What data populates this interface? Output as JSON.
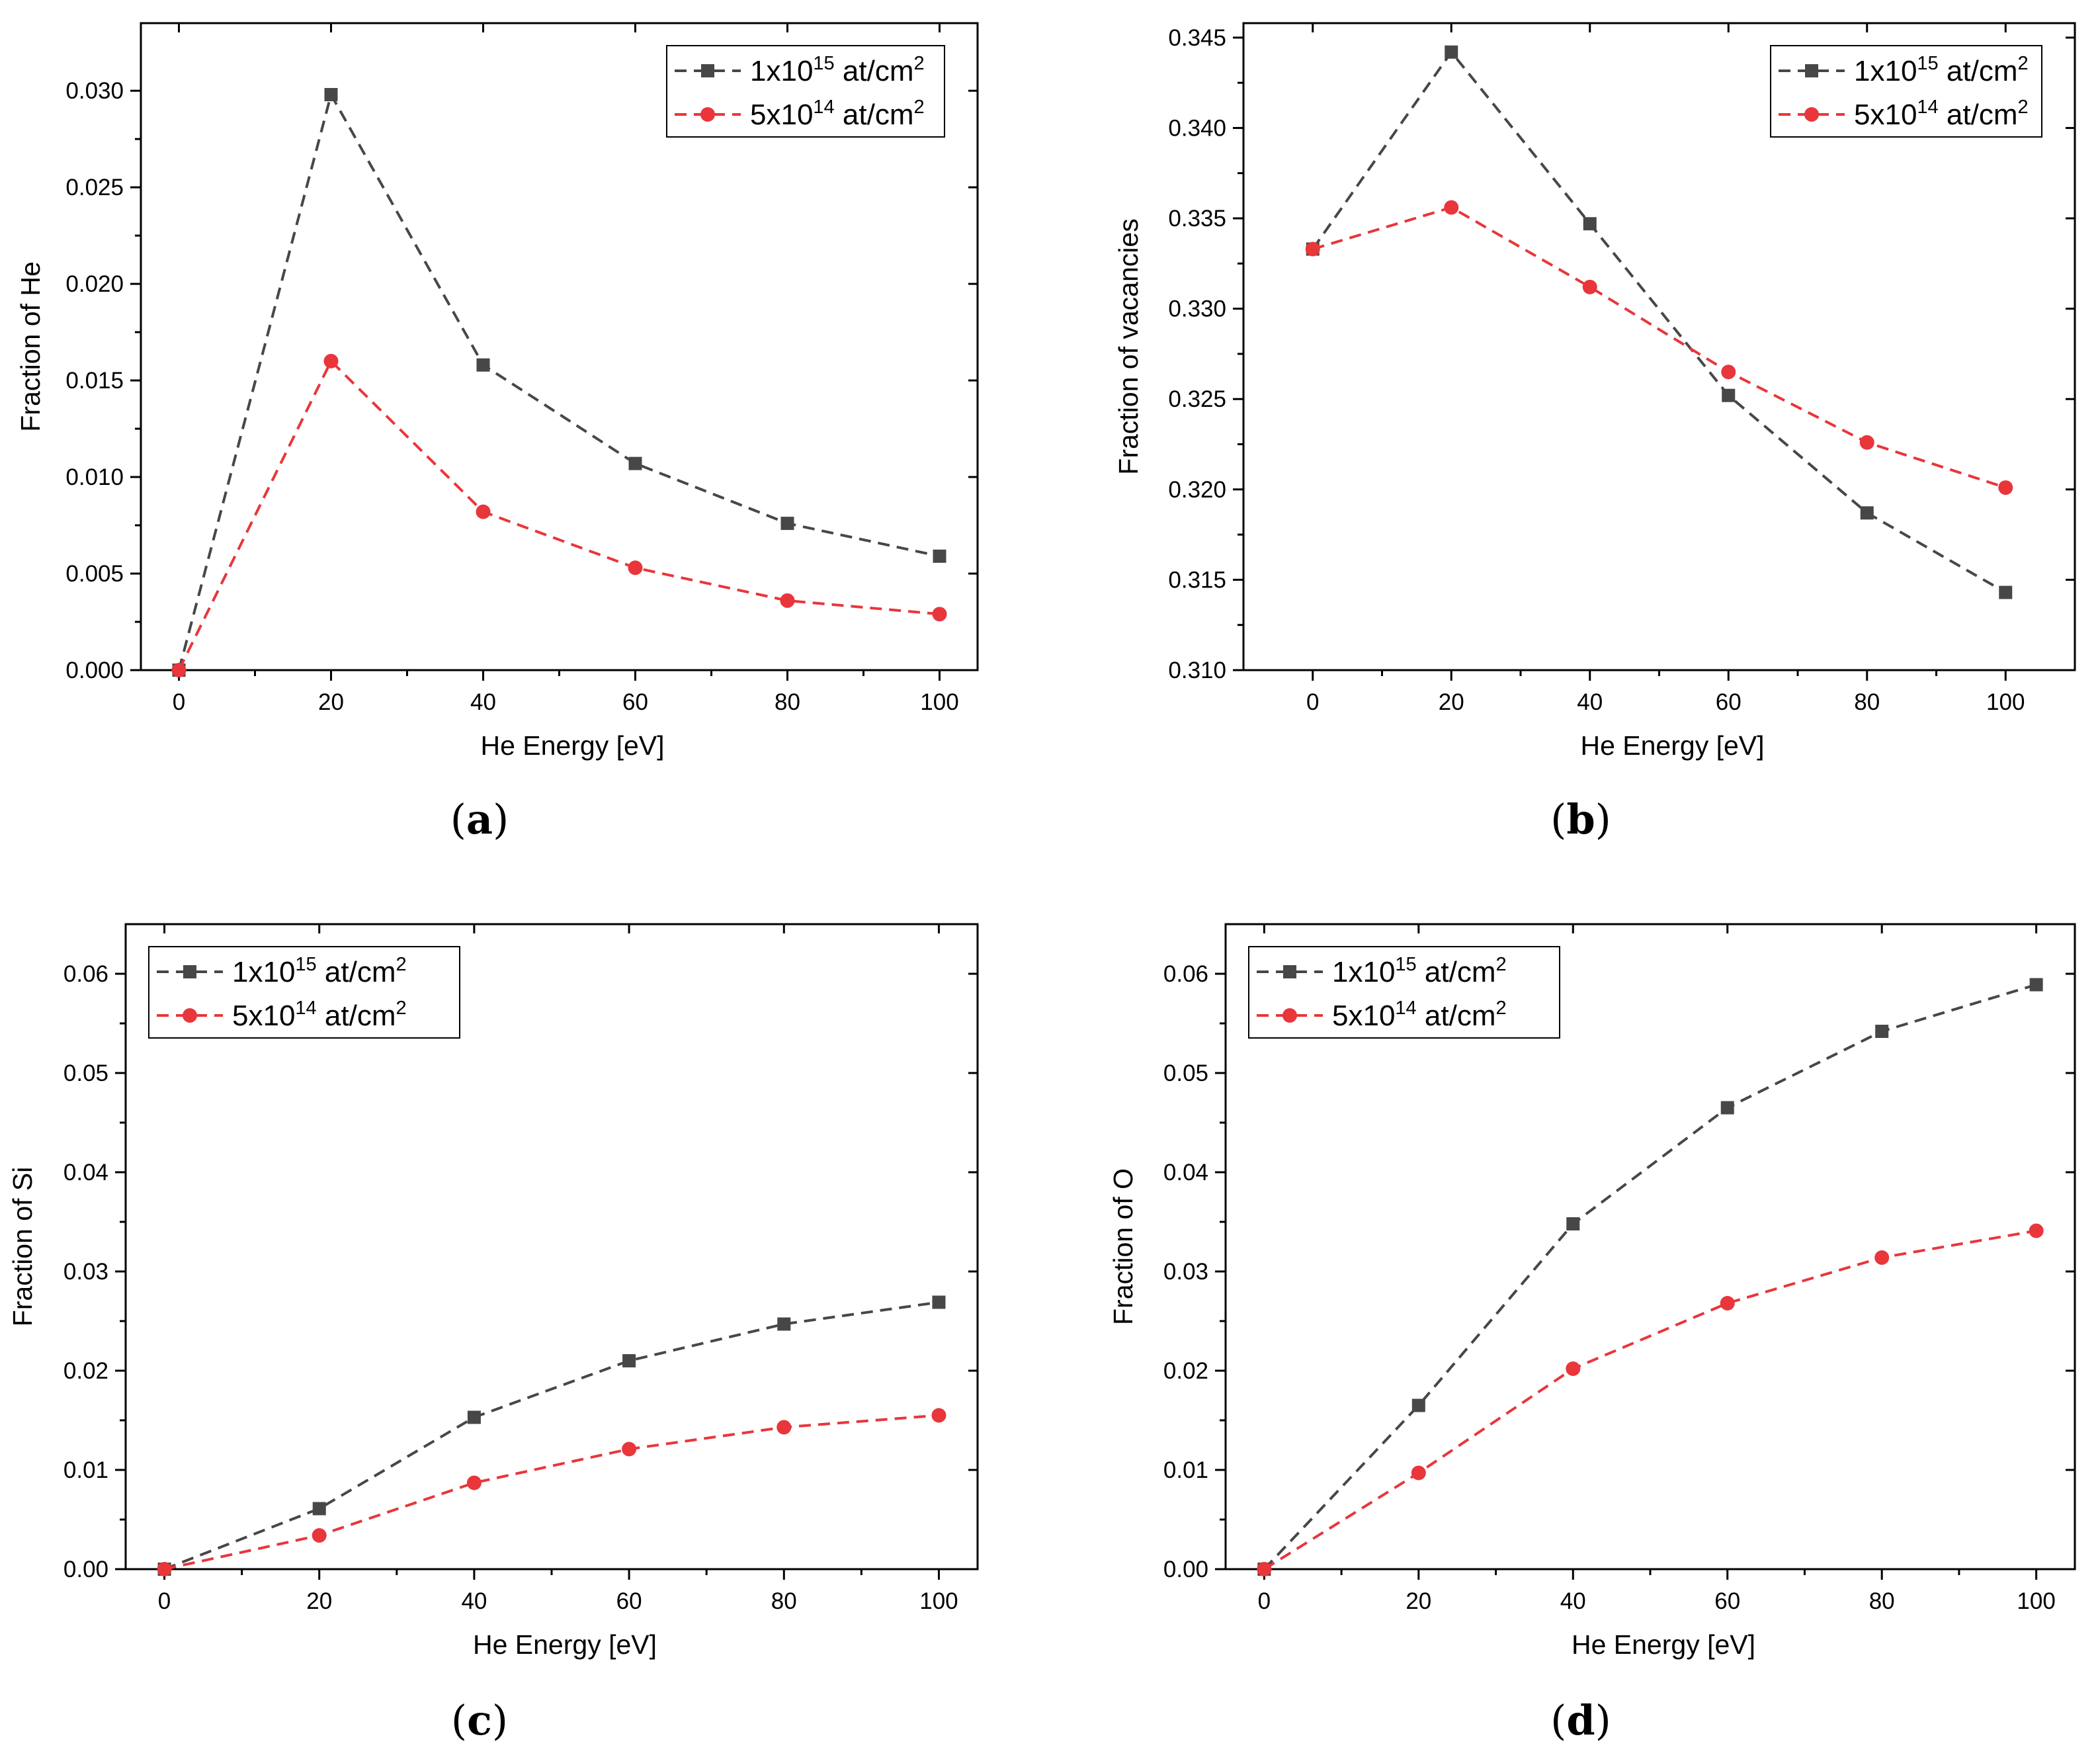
{
  "figure": {
    "panel_labels": [
      "(a)",
      "(b)",
      "(c)",
      "(d)"
    ]
  },
  "colors": {
    "series1": "#474747",
    "series2": "#e8363b",
    "axis": "#000000",
    "legend_border": "#000000"
  },
  "chart_data": [
    {
      "id": "a",
      "label": "(a)",
      "type": "line",
      "xlabel": "He Energy [eV]",
      "ylabel": "Fraction of He",
      "xlim": [
        -5,
        105
      ],
      "ylim": [
        0,
        0.0335
      ],
      "xticks": [
        0,
        20,
        40,
        60,
        80,
        100
      ],
      "xtick_labels": [
        "0",
        "20",
        "40",
        "60",
        "80",
        "100"
      ],
      "yticks": [
        0,
        0.005,
        0.01,
        0.015,
        0.02,
        0.025,
        0.03
      ],
      "ytick_labels": [
        "0.000",
        "0.005",
        "0.010",
        "0.015",
        "0.020",
        "0.025",
        "0.030"
      ],
      "legend_position": "top-right",
      "x": [
        0,
        20,
        40,
        60,
        80,
        100
      ],
      "series": [
        {
          "name": "1x10^15 at/cm^2",
          "legend_parts": [
            "1x10",
            "15",
            " at/cm",
            "2"
          ],
          "marker": "square",
          "values": [
            0,
            0.0298,
            0.0158,
            0.0107,
            0.0076,
            0.0059
          ]
        },
        {
          "name": "5x10^14 at/cm^2",
          "legend_parts": [
            "5x10",
            "14",
            " at/cm",
            "2"
          ],
          "marker": "circle",
          "values": [
            0,
            0.016,
            0.0082,
            0.0053,
            0.0036,
            0.0029
          ]
        }
      ]
    },
    {
      "id": "b",
      "label": "(b)",
      "type": "line",
      "xlabel": "He Energy [eV]",
      "ylabel": "Fraction of vacancies",
      "xlim": [
        -10,
        110
      ],
      "ylim": [
        0.31,
        0.3458
      ],
      "xticks": [
        0,
        20,
        40,
        60,
        80,
        100
      ],
      "xtick_labels": [
        "0",
        "20",
        "40",
        "60",
        "80",
        "100"
      ],
      "yticks": [
        0.31,
        0.315,
        0.32,
        0.325,
        0.33,
        0.335,
        0.34,
        0.345
      ],
      "ytick_labels": [
        "0.310",
        "0.315",
        "0.320",
        "0.325",
        "0.330",
        "0.335",
        "0.340",
        "0.345"
      ],
      "legend_position": "top-right",
      "x": [
        0,
        20,
        40,
        60,
        80,
        100
      ],
      "series": [
        {
          "name": "1x10^15 at/cm^2",
          "legend_parts": [
            "1x10",
            "15",
            " at/cm",
            "2"
          ],
          "marker": "square",
          "values": [
            0.3333,
            0.3442,
            0.3347,
            0.3252,
            0.3187,
            0.3143
          ]
        },
        {
          "name": "5x10^14 at/cm^2",
          "legend_parts": [
            "5x10",
            "14",
            " at/cm",
            "2"
          ],
          "marker": "circle",
          "values": [
            0.3333,
            0.3356,
            0.3312,
            0.3265,
            0.3226,
            0.3201
          ]
        }
      ]
    },
    {
      "id": "c",
      "label": "(c)",
      "type": "line",
      "xlabel": "He Energy [eV]",
      "ylabel": "Fraction of Si",
      "xlim": [
        -5,
        105
      ],
      "ylim": [
        0,
        0.065
      ],
      "xticks": [
        0,
        20,
        40,
        60,
        80,
        100
      ],
      "xtick_labels": [
        "0",
        "20",
        "40",
        "60",
        "80",
        "100"
      ],
      "yticks": [
        0,
        0.01,
        0.02,
        0.03,
        0.04,
        0.05,
        0.06
      ],
      "ytick_labels": [
        "0.00",
        "0.01",
        "0.02",
        "0.03",
        "0.04",
        "0.05",
        "0.06"
      ],
      "legend_position": "top-left",
      "x": [
        0,
        20,
        40,
        60,
        80,
        100
      ],
      "series": [
        {
          "name": "1x10^15 at/cm^2",
          "legend_parts": [
            "1x10",
            "15",
            " at/cm",
            "2"
          ],
          "marker": "square",
          "values": [
            0,
            0.0061,
            0.0153,
            0.021,
            0.0247,
            0.0269
          ]
        },
        {
          "name": "5x10^14 at/cm^2",
          "legend_parts": [
            "5x10",
            "14",
            " at/cm",
            "2"
          ],
          "marker": "circle",
          "values": [
            0,
            0.0034,
            0.0087,
            0.0121,
            0.0143,
            0.0155
          ]
        }
      ]
    },
    {
      "id": "d",
      "label": "(d)",
      "type": "line",
      "xlabel": "He Energy [eV]",
      "ylabel": "Fraction of O",
      "xlim": [
        -5,
        105
      ],
      "ylim": [
        0,
        0.065
      ],
      "xticks": [
        0,
        20,
        40,
        60,
        80,
        100
      ],
      "xtick_labels": [
        "0",
        "20",
        "40",
        "60",
        "80",
        "100"
      ],
      "yticks": [
        0,
        0.01,
        0.02,
        0.03,
        0.04,
        0.05,
        0.06
      ],
      "ytick_labels": [
        "0.00",
        "0.01",
        "0.02",
        "0.03",
        "0.04",
        "0.05",
        "0.06"
      ],
      "legend_position": "top-left",
      "x": [
        0,
        20,
        40,
        60,
        80,
        100
      ],
      "series": [
        {
          "name": "1x10^15 at/cm^2",
          "legend_parts": [
            "1x10",
            "15",
            " at/cm",
            "2"
          ],
          "marker": "square",
          "values": [
            0,
            0.0165,
            0.0348,
            0.0465,
            0.0542,
            0.0589
          ]
        },
        {
          "name": "5x10^14 at/cm^2",
          "legend_parts": [
            "5x10",
            "14",
            " at/cm",
            "2"
          ],
          "marker": "circle",
          "values": [
            0,
            0.0097,
            0.0202,
            0.0268,
            0.0314,
            0.0341
          ]
        }
      ]
    }
  ]
}
